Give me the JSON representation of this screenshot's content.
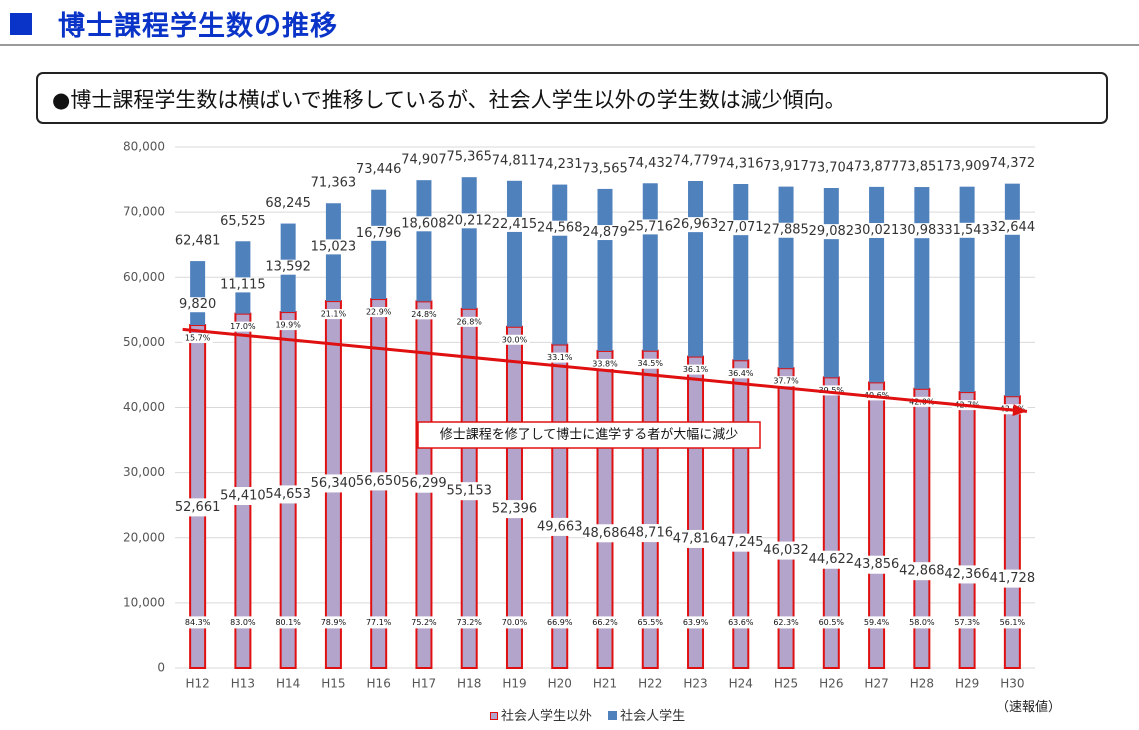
{
  "header": {
    "title": "博士課程学生数の推移"
  },
  "summary": {
    "text": "●博士課程学生数は横ばいで推移しているが、社会人学生以外の学生数は減少傾向。"
  },
  "chart_data": {
    "type": "bar",
    "stacked": true,
    "categories": [
      "H12",
      "H13",
      "H14",
      "H15",
      "H16",
      "H17",
      "H18",
      "H19",
      "H20",
      "H21",
      "H22",
      "H23",
      "H24",
      "H25",
      "H26",
      "H27",
      "H28",
      "H29",
      "H30"
    ],
    "series": [
      {
        "name": "社会人学生以外",
        "color": "#b3a4cc",
        "border": "#e01010",
        "values": [
          52661,
          54410,
          54653,
          56340,
          56650,
          56299,
          55153,
          52396,
          49663,
          48686,
          48716,
          47816,
          47245,
          46032,
          44622,
          43856,
          42868,
          42366,
          41728
        ],
        "pct_labels": [
          "84.3%",
          "83.0%",
          "80.1%",
          "78.9%",
          "77.1%",
          "75.2%",
          "73.2%",
          "70.0%",
          "66.9%",
          "66.2%",
          "65.5%",
          "63.9%",
          "63.6%",
          "62.3%",
          "60.5%",
          "59.4%",
          "58.0%",
          "57.3%",
          "56.1%"
        ],
        "value_labels": [
          "52,661",
          "54,410",
          "54,653",
          "56,340",
          "56,650",
          "56,299",
          "55,153",
          "52,396",
          "49,663",
          "48,686",
          "48,716",
          "47,816",
          "47,245",
          "46,032",
          "44,622",
          "43,856",
          "42,868",
          "42,366",
          "41,728"
        ]
      },
      {
        "name": "社会人学生",
        "color": "#4f81bd",
        "values": [
          9820,
          11115,
          13592,
          15023,
          16796,
          18608,
          20212,
          22415,
          24568,
          24879,
          25716,
          26963,
          27071,
          27885,
          29082,
          30021,
          30983,
          31543,
          32644
        ],
        "pct_labels": [
          "15.7%",
          "17.0%",
          "19.9%",
          "21.1%",
          "22.9%",
          "24.8%",
          "26.8%",
          "30.0%",
          "33.1%",
          "33.8%",
          "34.5%",
          "36.1%",
          "36.4%",
          "37.7%",
          "39.5%",
          "40.6%",
          "42.0%",
          "42.7%",
          "43.9%"
        ],
        "value_labels": [
          "9,820",
          "11,115",
          "13,592",
          "15,023",
          "16,796",
          "18,608",
          "20,212",
          "22,415",
          "24,568",
          "24,879",
          "25,716",
          "26,963",
          "27,071",
          "27,885",
          "29,082",
          "30,021",
          "30,983",
          "31,543",
          "32,644"
        ]
      }
    ],
    "totals": [
      62481,
      65525,
      68245,
      71363,
      73446,
      74907,
      75365,
      74811,
      74231,
      73565,
      74432,
      74779,
      74316,
      73917,
      73704,
      73877,
      73851,
      73909,
      74372
    ],
    "total_labels": [
      "62,481",
      "65,525",
      "68,245",
      "71,363",
      "73,446",
      "74,907",
      "75,365",
      "74,811",
      "74,231",
      "73,565",
      "74,432",
      "74,779",
      "74,316",
      "73,917",
      "73,704",
      "73,877",
      "73,851",
      "73,909",
      "74,372"
    ],
    "y_ticks": [
      0,
      10000,
      20000,
      30000,
      40000,
      50000,
      60000,
      70000,
      80000
    ],
    "y_tick_labels": [
      "0",
      "10,000",
      "20,000",
      "30,000",
      "40,000",
      "50,000",
      "60,000",
      "70,000",
      "80,000"
    ],
    "ylim": [
      0,
      80000
    ],
    "gridlines": true,
    "trend_line": {
      "color": "#e01010",
      "start_value": 52000,
      "end_value": 39400
    },
    "annotation": "修士課程を修了して博士に進学する者が大幅に減少",
    "legend_position": "bottom",
    "unit_note": "（速報値）"
  }
}
